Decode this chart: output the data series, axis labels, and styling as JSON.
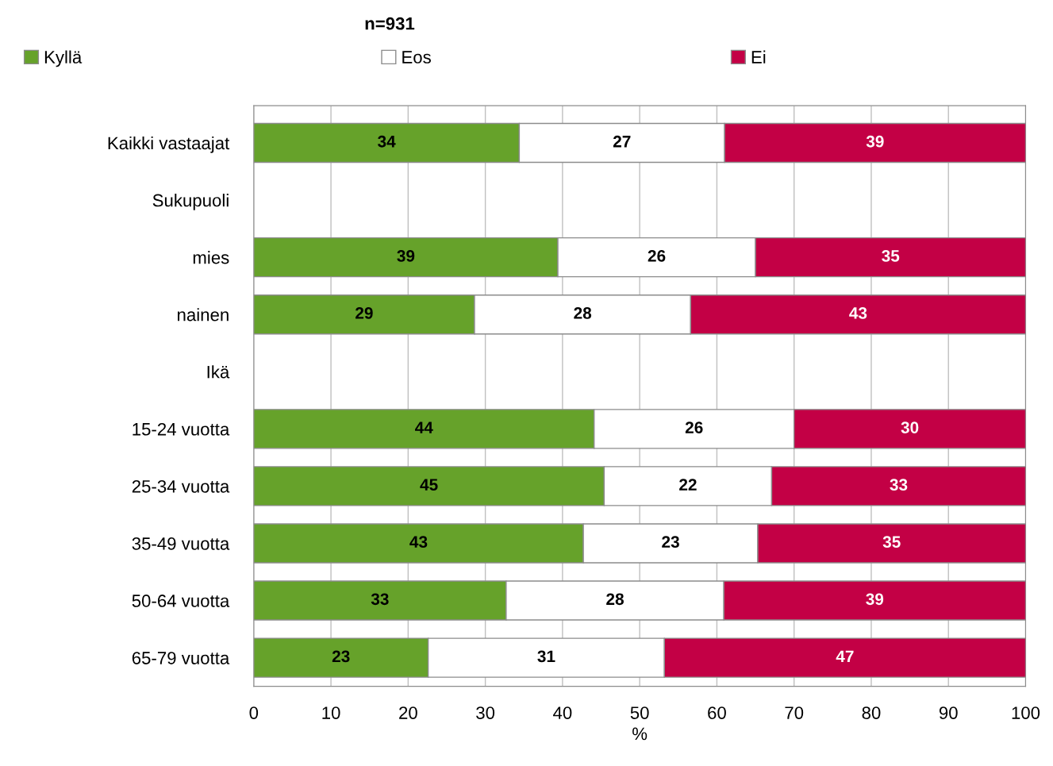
{
  "chart_data": {
    "type": "bar",
    "orientation": "horizontal",
    "stacked": true,
    "title": "n=931",
    "xlabel": "%",
    "categories": [
      "Kaikki vastaajat",
      "Sukupuoli",
      "mies",
      "nainen",
      "Ikä",
      "15-24 vuotta",
      "25-34 vuotta",
      "35-49 vuotta",
      "50-64 vuotta",
      "65-79 vuotta"
    ],
    "series": [
      {
        "name": "Kyllä",
        "color": "#66a22a",
        "values": [
          34.4,
          null,
          39.4,
          28.6,
          null,
          44.1,
          45.4,
          42.7,
          32.7,
          22.6
        ],
        "value_labels": [
          "34",
          null,
          "39",
          "29",
          null,
          "44",
          "45",
          "43",
          "33",
          "23"
        ]
      },
      {
        "name": "Eos",
        "color": "#ffffff",
        "values": [
          26.6,
          null,
          25.6,
          28.0,
          null,
          25.9,
          21.7,
          22.6,
          28.2,
          30.6
        ],
        "value_labels": [
          "27",
          null,
          "26",
          "28",
          null,
          "26",
          "22",
          "23",
          "28",
          "31"
        ]
      },
      {
        "name": "Ei",
        "color": "#c30045",
        "values": [
          39.0,
          null,
          35.0,
          43.4,
          null,
          30.0,
          32.9,
          34.7,
          39.1,
          46.8
        ],
        "value_labels": [
          "39",
          null,
          "35",
          "43",
          null,
          "30",
          "33",
          "35",
          "39",
          "47"
        ]
      }
    ],
    "xlim": [
      0,
      100
    ],
    "xticks": [
      0,
      10,
      20,
      30,
      40,
      50,
      60,
      70,
      80,
      90,
      100
    ],
    "grid": "x",
    "legend": "top"
  }
}
